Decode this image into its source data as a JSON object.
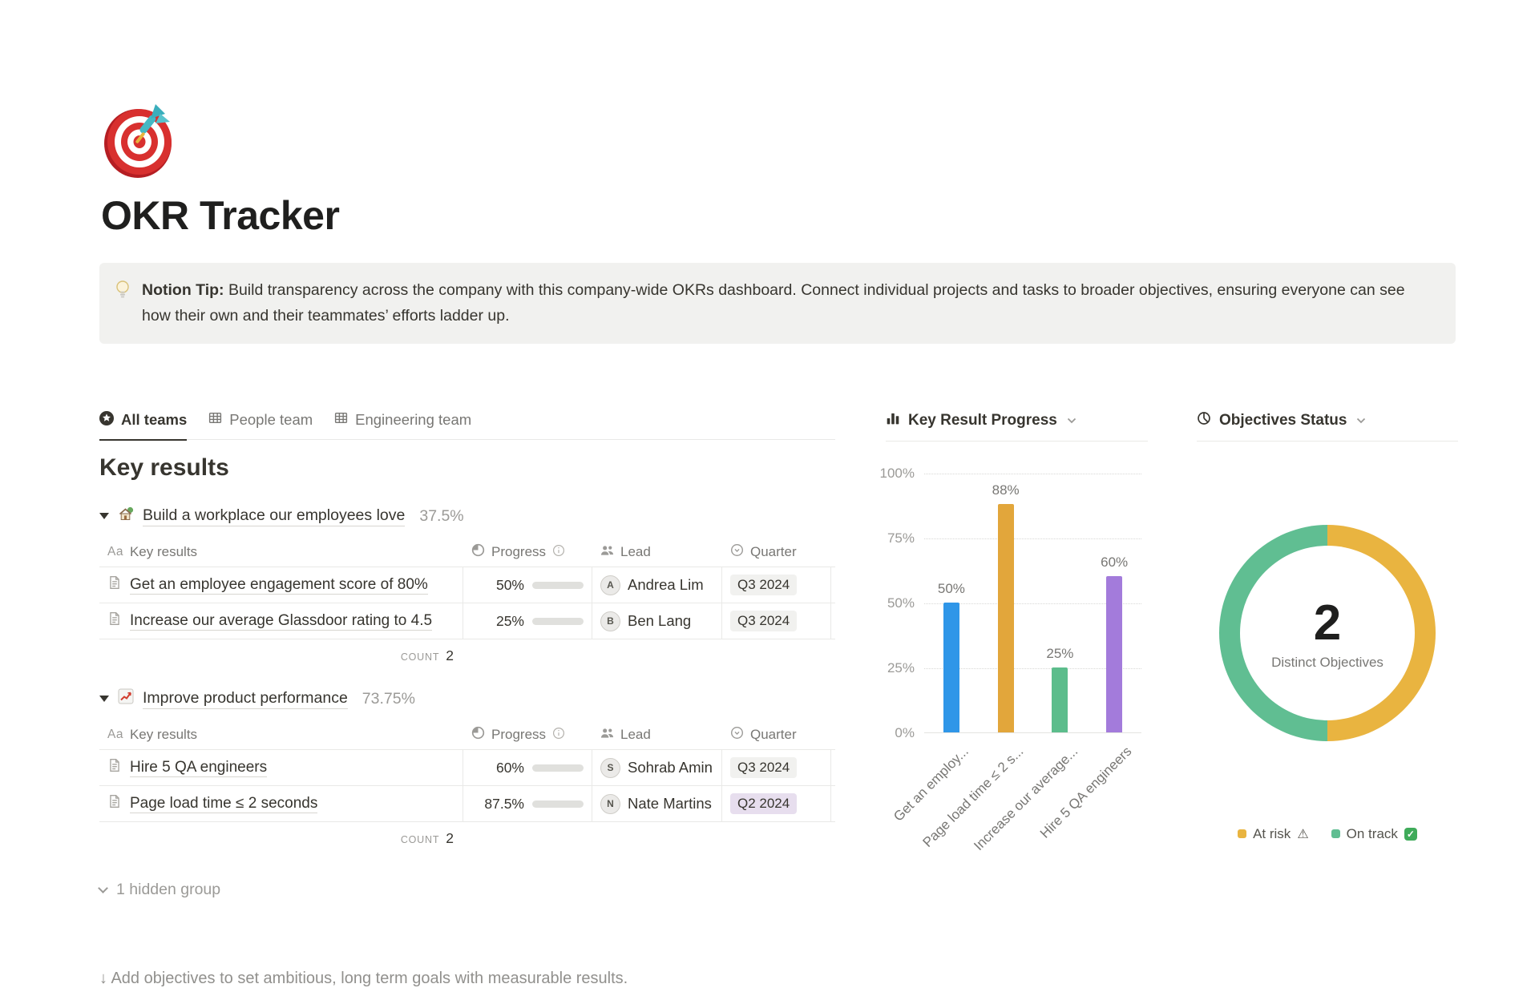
{
  "page": {
    "icon_char": "🎯",
    "title": "OKR Tracker",
    "callout": {
      "icon_char": "💡",
      "bold": "Notion Tip:",
      "text": " Build transparency across the company with this company-wide OKRs dashboard. Connect individual projects and tasks to broader objectives, ensuring everyone can see how their own and their teammates’ efforts ladder up."
    }
  },
  "tabs": [
    {
      "label": "All teams",
      "icon": "star-circle",
      "active": true
    },
    {
      "label": "People team",
      "icon": "table",
      "active": false
    },
    {
      "label": "Engineering team",
      "icon": "table",
      "active": false
    }
  ],
  "section_title": "Key results",
  "table_headers": {
    "title_icon_text": "Aa",
    "title": "Key results",
    "progress": "Progress",
    "lead": "Lead",
    "quarter": "Quarter"
  },
  "groups": [
    {
      "emoji_char": "🏡",
      "emoji_icon": "house-garden",
      "name": "Build a workplace our employees love",
      "percent": "37.5%",
      "count_label": "COUNT",
      "count": "2",
      "rows": [
        {
          "title": "Get an employee engagement score of 80%",
          "progress": "50%",
          "progress_value": 50,
          "lead": "Andrea Lim",
          "avatar_initial": "A",
          "quarter": "Q3 2024",
          "quarter_color": "gray"
        },
        {
          "title": "Increase our average Glassdoor rating to 4.5",
          "progress": "25%",
          "progress_value": 25,
          "lead": "Ben Lang",
          "avatar_initial": "B",
          "quarter": "Q3 2024",
          "quarter_color": "gray"
        }
      ]
    },
    {
      "emoji_char": "📈",
      "emoji_icon": "chart-increasing",
      "name": "Improve product performance",
      "percent": "73.75%",
      "count_label": "COUNT",
      "count": "2",
      "rows": [
        {
          "title": "Hire 5 QA engineers",
          "progress": "60%",
          "progress_value": 60,
          "lead": "Sohrab Amin",
          "avatar_initial": "S",
          "quarter": "Q3 2024",
          "quarter_color": "gray"
        },
        {
          "title": "Page load time ≤ 2 seconds",
          "progress": "87.5%",
          "progress_value": 87.5,
          "lead": "Nate Martins",
          "avatar_initial": "N",
          "quarter": "Q2 2024",
          "quarter_color": "purple"
        }
      ]
    }
  ],
  "hidden_group": "1 hidden group",
  "footer_hint": "↓ Add objectives to set ambitious, long term goals with measurable results.",
  "chart_data": [
    {
      "type": "bar",
      "title": "Key Result Progress",
      "categories": [
        "Get an employ...",
        "Page load time ≤ 2 s...",
        "Increase our average...",
        "Hire 5 QA engineers"
      ],
      "values": [
        50,
        88,
        25,
        60
      ],
      "data_labels": [
        "50%",
        "88%",
        "25%",
        "60%"
      ],
      "colors": [
        "#2F96E8",
        "#E2A63B",
        "#5CBD8C",
        "#A37BDB"
      ],
      "xlabel": "",
      "ylabel": "",
      "ylim": [
        0,
        100
      ],
      "yticks": [
        "100%",
        "75%",
        "50%",
        "25%",
        "0%"
      ],
      "grid": "dotted horizontal"
    },
    {
      "type": "pie",
      "title": "Objectives Status",
      "style": "donut",
      "slices": [
        {
          "label": "At risk",
          "value": 1,
          "color": "#E9B440",
          "status_icon": "warning"
        },
        {
          "label": "On track",
          "value": 1,
          "color": "#60BE92",
          "status_icon": "check"
        }
      ],
      "center_value": "2",
      "center_label": "Distinct Objectives",
      "legend_position": "bottom"
    }
  ],
  "colors": {
    "text": "#37352F",
    "muted_text": "#787774",
    "faint_text": "#9B9A97",
    "divider": "#E9E9E7",
    "callout_bg": "#F1F1EF",
    "badge_gray_bg": "#F1F1EF",
    "badge_purple_bg": "#E7DEEE",
    "progress_fill": "#6B8F79",
    "progress_track": "#E0E0DD"
  }
}
